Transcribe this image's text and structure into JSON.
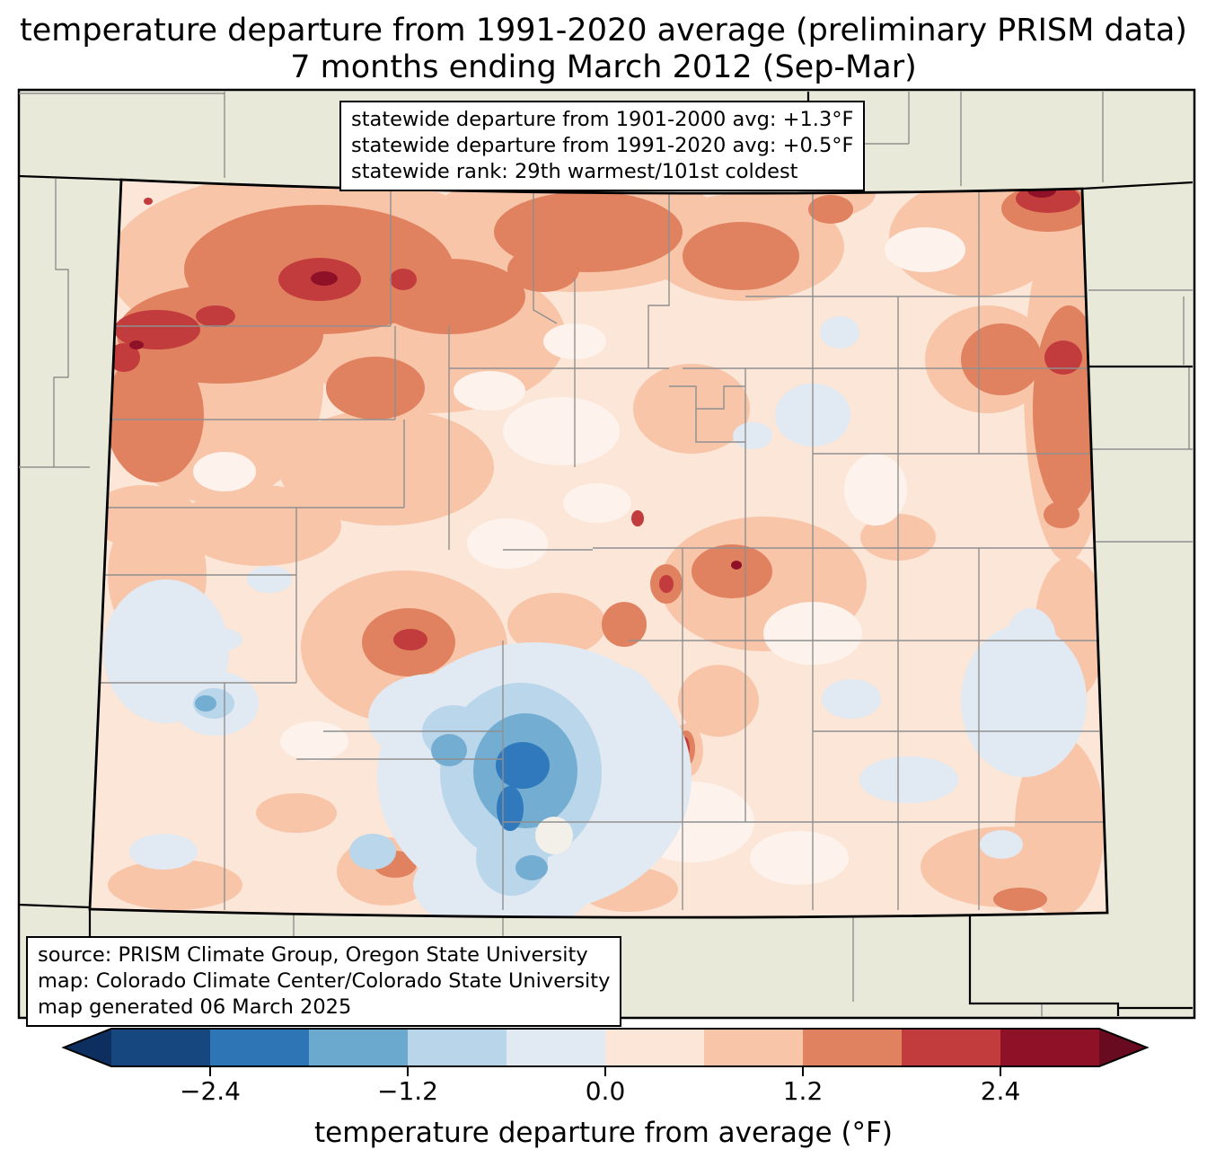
{
  "title": {
    "line1": "temperature departure from 1991-2020 average (preliminary PRISM data)",
    "line2": "7 months ending March 2012 (Sep-Mar)"
  },
  "stats_box": {
    "line1": "statewide departure from 1901-2000 avg: +1.3°F",
    "line2": "statewide departure from 1991-2020 avg: +0.5°F",
    "line3": "statewide rank: 29th warmest/101st coldest"
  },
  "statistics": {
    "departure_from_1901_2000_avg_F": "+1.3",
    "departure_from_1991_2020_avg_F": "+0.5",
    "rank": "29th warmest/101st coldest"
  },
  "source_box": {
    "line1": "source: PRISM Climate Group, Oregon State University",
    "line2": "map: Colorado Climate Center/Colorado State University",
    "line3": "map generated 06 March 2025"
  },
  "colorbar": {
    "label": "temperature departure from average (°F)",
    "ticks": [
      "−2.4",
      "−1.2",
      "0.0",
      "1.2",
      "2.4"
    ],
    "tick_values": [
      -2.4,
      -1.2,
      0.0,
      1.2,
      2.4
    ],
    "bin_edges": [
      -3.0,
      -2.4,
      -1.8,
      -1.2,
      -0.6,
      0.0,
      0.6,
      1.2,
      1.8,
      2.4,
      3.0
    ],
    "segment_colors": [
      "#16487f",
      "#2e75b6",
      "#6ba9cf",
      "#b8d5e9",
      "#e1e9f2",
      "#fbe6d8",
      "#f8c5a9",
      "#e08260",
      "#c33c3d",
      "#8e1127"
    ],
    "under_color": "#0d2f60",
    "over_color": "#680a20"
  },
  "map": {
    "region": "Colorado",
    "outside_fill": "#e9e9d9",
    "county_line_color": "#8f8f8f",
    "state_line_color": "#000000",
    "anomaly_palette": {
      "warm_levels": [
        "#fbe6d8",
        "#f8c5a9",
        "#e08260",
        "#c33c3d",
        "#8e1127"
      ],
      "cool_levels": [
        "#e1e9f2",
        "#b9d6ea",
        "#74add2",
        "#3079bc"
      ]
    }
  }
}
